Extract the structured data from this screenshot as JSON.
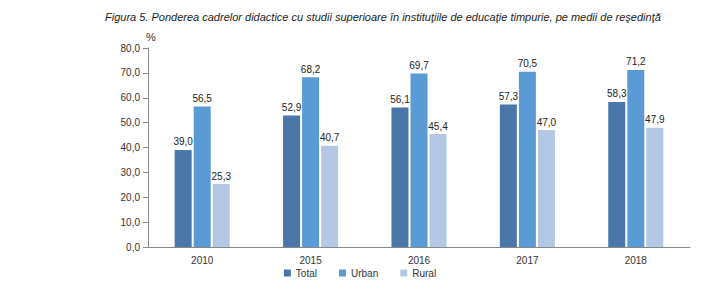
{
  "chart_data": {
    "type": "bar",
    "title": "Figura 5. Ponderea cadrelor didactice cu studii superioare în instituţiile de educaţie timpurie, pe medii de reşedinţă",
    "y_label": "%",
    "categories": [
      "2010",
      "2015",
      "2016",
      "2017",
      "2018"
    ],
    "series": [
      {
        "name": "Total",
        "color": "#4a76a8",
        "values": [
          39.0,
          52.9,
          56.1,
          57.3,
          58.3
        ],
        "value_labels": [
          "39,0",
          "52,9",
          "56,1",
          "57,3",
          "58,3"
        ]
      },
      {
        "name": "Urban",
        "color": "#5b9bd5",
        "values": [
          56.5,
          68.2,
          69.7,
          70.5,
          71.2
        ],
        "value_labels": [
          "56,5",
          "68,2",
          "69,7",
          "70,5",
          "71,2"
        ]
      },
      {
        "name": "Rural",
        "color": "#b4c8e6",
        "values": [
          25.3,
          40.7,
          45.4,
          47.0,
          47.9
        ],
        "value_labels": [
          "25,3",
          "40,7",
          "45,4",
          "47,0",
          "47,9"
        ]
      }
    ],
    "ylim": [
      0,
      80
    ],
    "yticks": [
      {
        "value": 0,
        "label": "0,0"
      },
      {
        "value": 10,
        "label": "10,0"
      },
      {
        "value": 20,
        "label": "20,0"
      },
      {
        "value": 30,
        "label": "30,0"
      },
      {
        "value": 40,
        "label": "40,0"
      },
      {
        "value": 50,
        "label": "50,0"
      },
      {
        "value": 60,
        "label": "60,0"
      },
      {
        "value": 70,
        "label": "70,0"
      },
      {
        "value": 80,
        "label": "80,0"
      }
    ],
    "grid": false,
    "legend": "bottom",
    "data_labels": true
  }
}
